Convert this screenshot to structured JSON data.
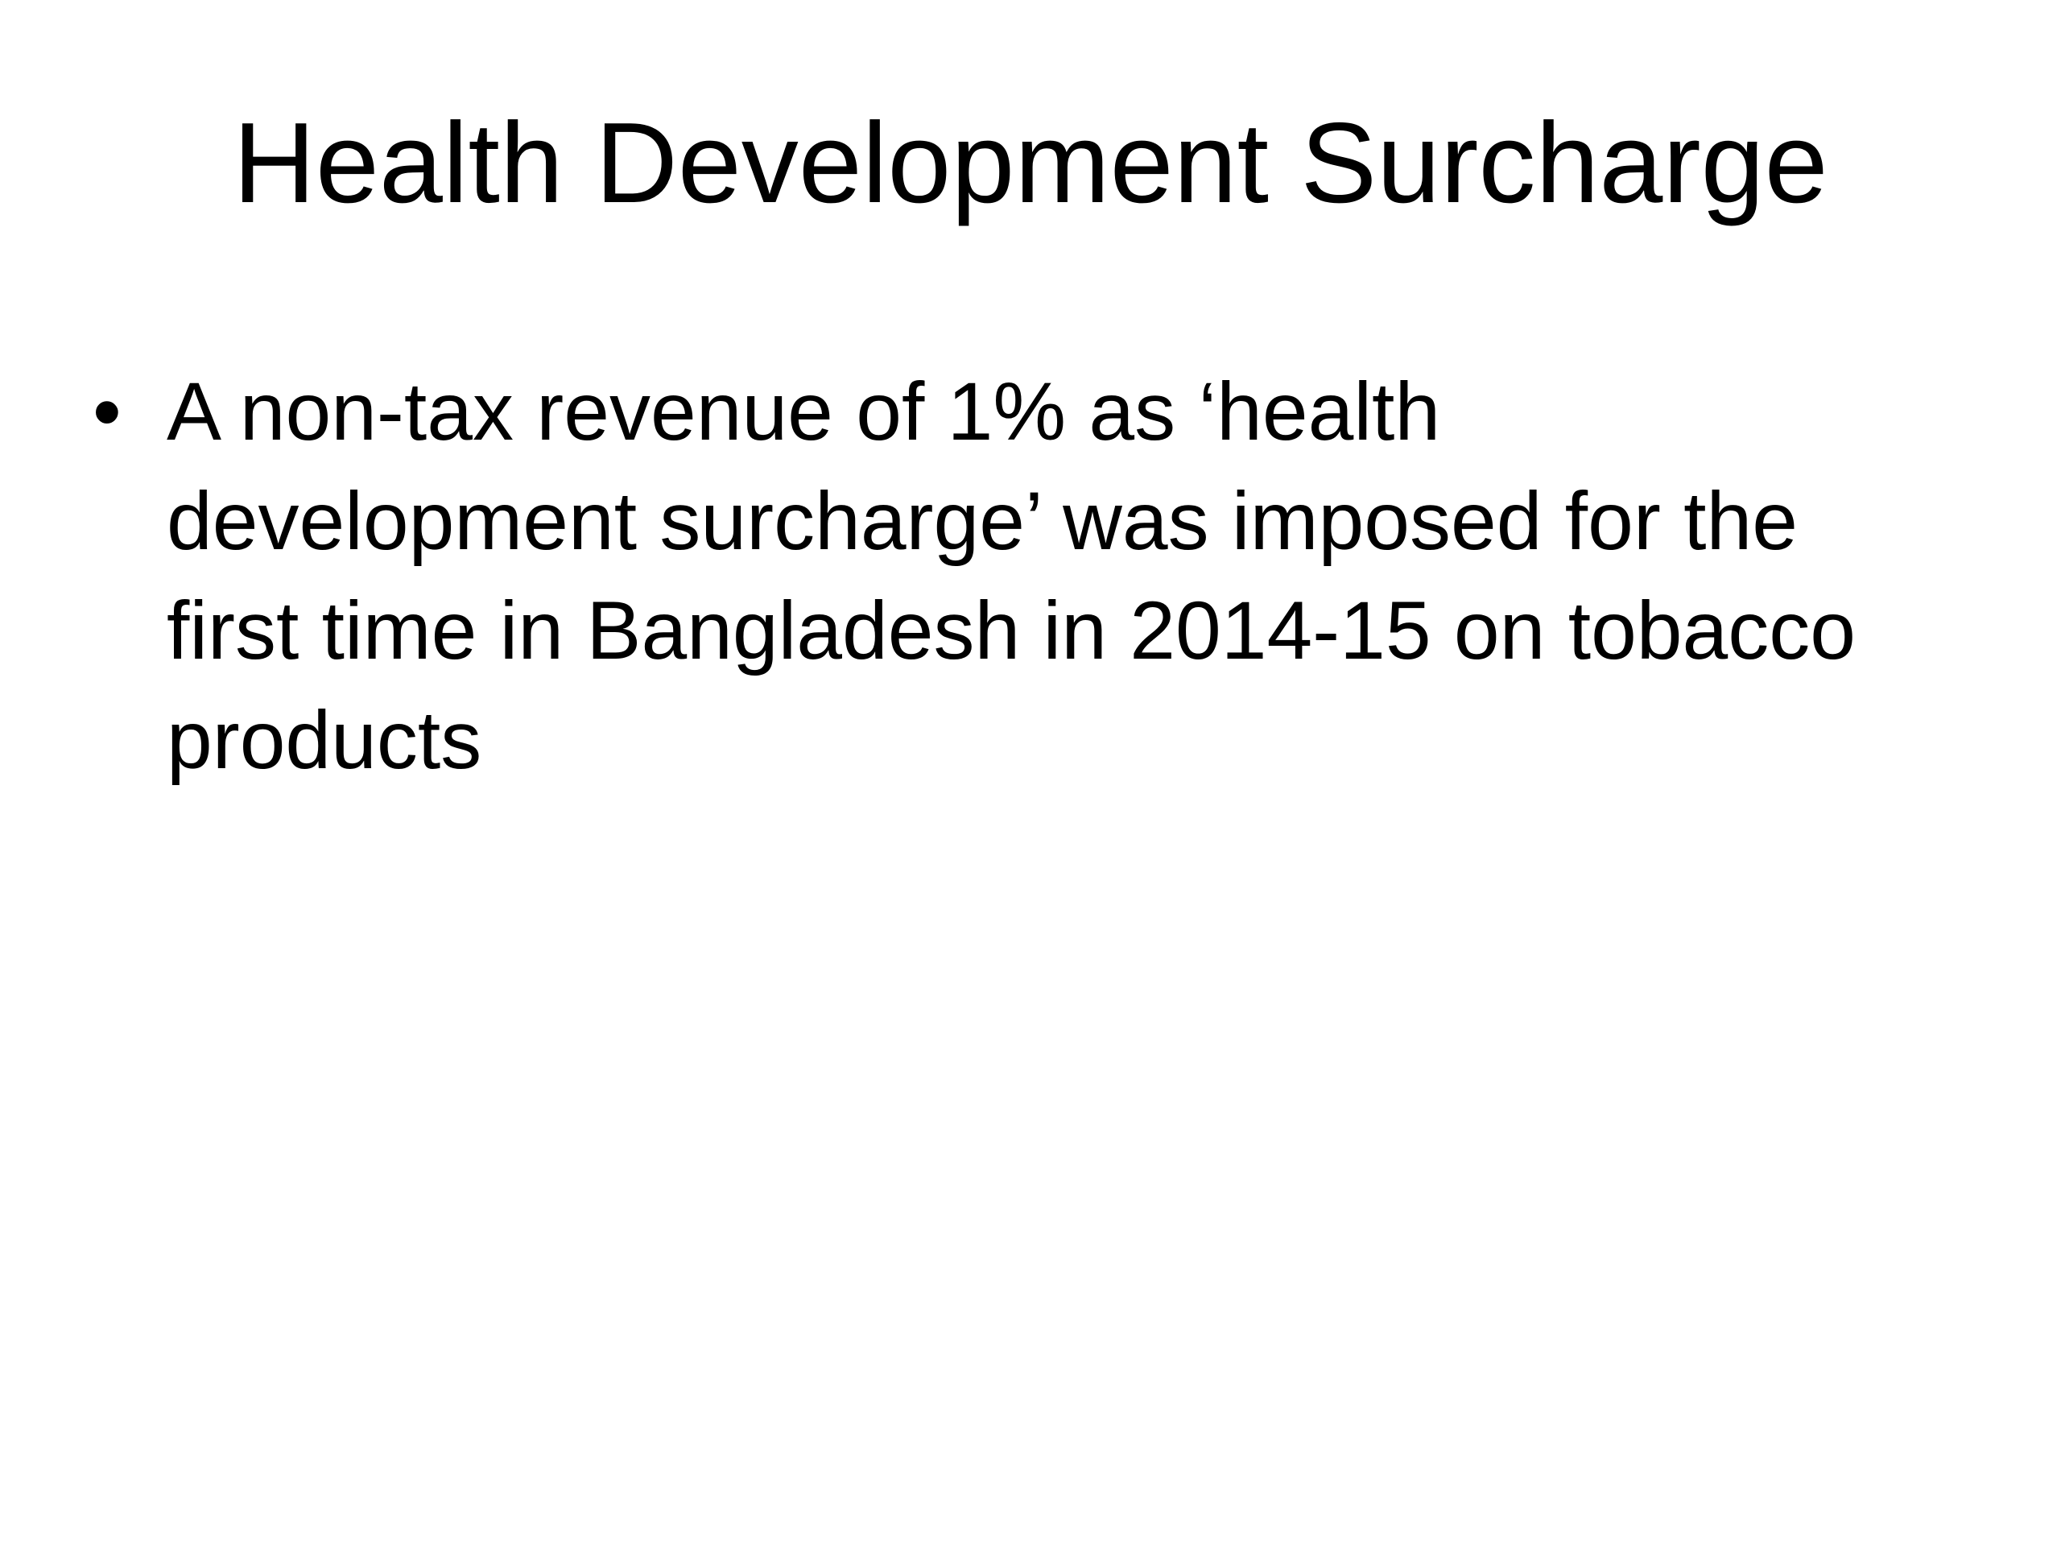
{
  "slide": {
    "title": "Health Development Surcharge",
    "bullet": {
      "marker": "•",
      "lines": [
        "A non-tax revenue of 1% as ‘health",
        "development surcharge’ was imposed for the",
        "first time in Bangladesh in 2014-15 on tobacco",
        "products"
      ]
    },
    "colors": {
      "background": "#ffffff",
      "text": "#000000"
    }
  }
}
